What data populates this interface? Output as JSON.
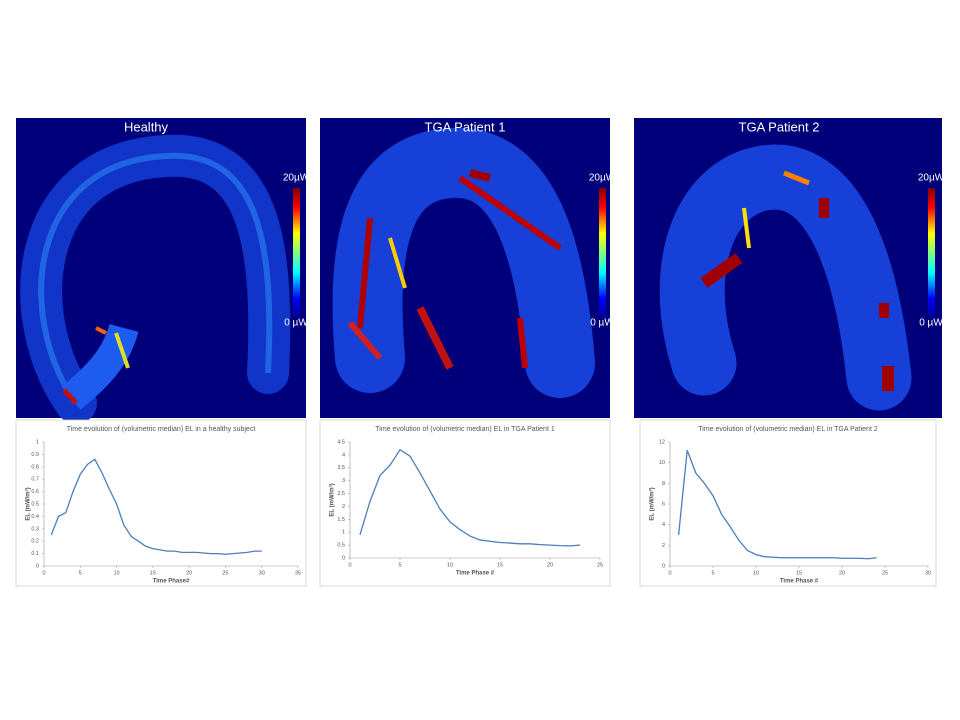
{
  "panels": [
    {
      "title": "Healthy",
      "colorbar_max": "20µW",
      "colorbar_min": "0 µW"
    },
    {
      "title": "TGA Patient 1",
      "colorbar_max": "20µW",
      "colorbar_min": "0 µW"
    },
    {
      "title": "TGA Patient 2",
      "colorbar_max": "20µW",
      "colorbar_min": "0 µW"
    }
  ],
  "chart_data": [
    {
      "type": "line",
      "title": "Time evolution of (volumetric median) EL in a healthy subject",
      "x_label": "Time Phase#",
      "y_label": "EL (mW/m³)",
      "x": [
        1,
        2,
        3,
        4,
        5,
        6,
        7,
        8,
        9,
        10,
        11,
        12,
        13,
        14,
        15,
        16,
        17,
        18,
        19,
        20,
        21,
        22,
        23,
        24,
        25,
        26,
        27,
        28,
        29,
        30
      ],
      "values": [
        0.25,
        0.4,
        0.43,
        0.6,
        0.74,
        0.82,
        0.86,
        0.75,
        0.62,
        0.5,
        0.33,
        0.24,
        0.2,
        0.16,
        0.14,
        0.13,
        0.12,
        0.12,
        0.11,
        0.11,
        0.11,
        0.105,
        0.1,
        0.1,
        0.095,
        0.1,
        0.105,
        0.11,
        0.12,
        0.12
      ],
      "color": "#4a7ebb",
      "xlim": [
        0,
        35
      ],
      "xticks": [
        0,
        5,
        10,
        15,
        20,
        25,
        30,
        35
      ],
      "ylim": [
        0,
        1
      ],
      "yticks": [
        0,
        0.1,
        0.2,
        0.3,
        0.4,
        0.5,
        0.6,
        0.7,
        0.8,
        0.9,
        1
      ]
    },
    {
      "type": "line",
      "title": "Time evolution of (volumetric median) EL in TGA Patient 1",
      "x_label": "Time Phase #",
      "y_label": "EL (mW/m³)",
      "x": [
        1,
        2,
        3,
        4,
        5,
        6,
        7,
        8,
        9,
        10,
        11,
        12,
        13,
        14,
        15,
        16,
        17,
        18,
        19,
        20,
        21,
        22,
        23
      ],
      "values": [
        0.9,
        2.2,
        3.2,
        3.6,
        4.2,
        3.95,
        3.3,
        2.6,
        1.9,
        1.4,
        1.1,
        0.85,
        0.7,
        0.65,
        0.6,
        0.58,
        0.55,
        0.55,
        0.52,
        0.5,
        0.48,
        0.47,
        0.5
      ],
      "color": "#4a7ebb",
      "xlim": [
        0,
        25
      ],
      "xticks": [
        0,
        5,
        10,
        15,
        20,
        25
      ],
      "ylim": [
        0,
        4.5
      ],
      "yticks": [
        0,
        0.5,
        1,
        1.5,
        2,
        2.5,
        3,
        3.5,
        4,
        4.5
      ]
    },
    {
      "type": "line",
      "title": "Time evolution of (volumetric median) EL in TGA Patient 2",
      "x_label": "Time Phase #",
      "y_label": "EL (mW/m³)",
      "x": [
        1,
        2,
        3,
        4,
        5,
        6,
        7,
        8,
        9,
        10,
        11,
        12,
        13,
        14,
        15,
        16,
        17,
        18,
        19,
        20,
        21,
        22,
        23,
        24
      ],
      "values": [
        3,
        11.2,
        9,
        8,
        6.8,
        5,
        3.8,
        2.5,
        1.5,
        1.1,
        0.9,
        0.85,
        0.8,
        0.8,
        0.8,
        0.8,
        0.8,
        0.8,
        0.8,
        0.75,
        0.75,
        0.75,
        0.7,
        0.8
      ],
      "color": "#4a7ebb",
      "xlim": [
        0,
        30
      ],
      "xticks": [
        0,
        5,
        10,
        15,
        20,
        25,
        30
      ],
      "ylim": [
        0,
        12
      ],
      "yticks": [
        0,
        2,
        4,
        6,
        8,
        10,
        12
      ]
    }
  ]
}
